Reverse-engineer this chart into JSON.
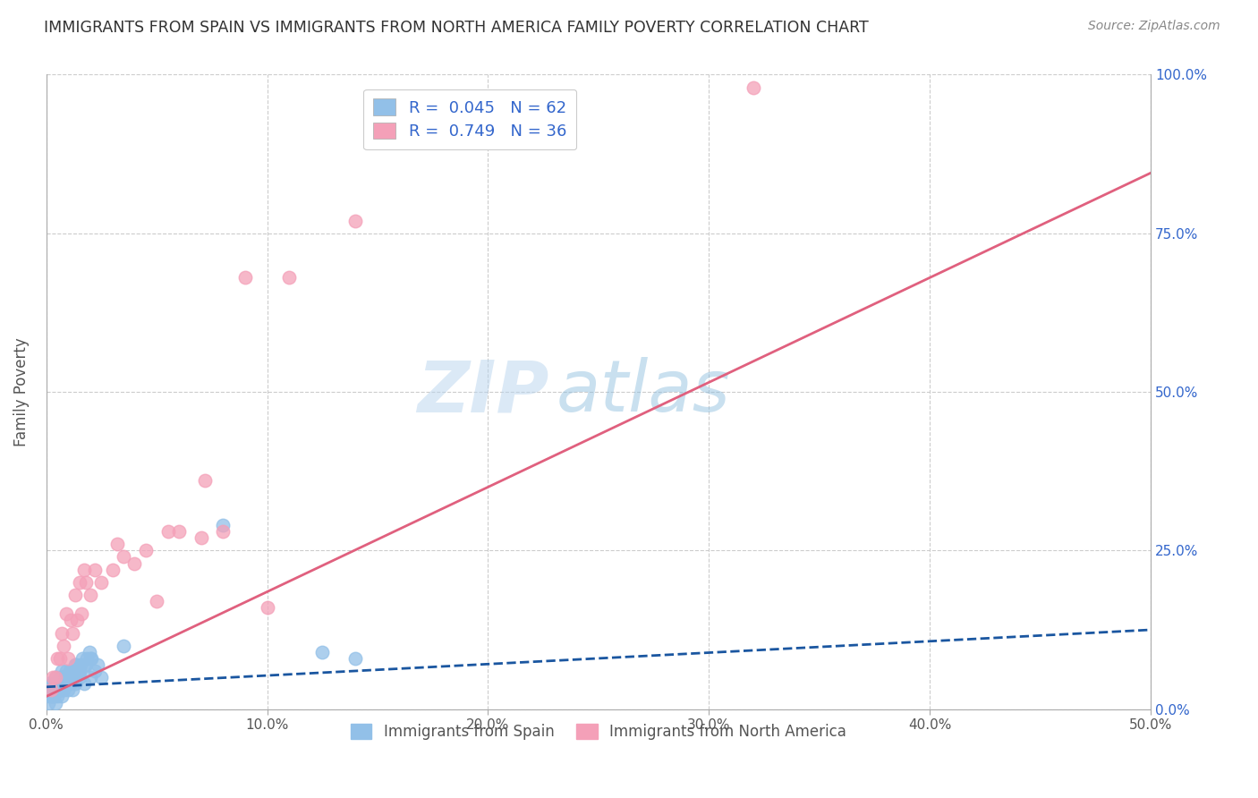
{
  "title": "IMMIGRANTS FROM SPAIN VS IMMIGRANTS FROM NORTH AMERICA FAMILY POVERTY CORRELATION CHART",
  "source": "Source: ZipAtlas.com",
  "ylabel": "Family Poverty",
  "x_tick_labels": [
    "0.0%",
    "10.0%",
    "20.0%",
    "30.0%",
    "40.0%",
    "50.0%"
  ],
  "x_tick_values": [
    0,
    10,
    20,
    30,
    40,
    50
  ],
  "y_tick_labels": [
    "0.0%",
    "25.0%",
    "50.0%",
    "75.0%",
    "100.0%"
  ],
  "y_tick_values": [
    0,
    25,
    50,
    75,
    100
  ],
  "xlim": [
    0,
    50
  ],
  "ylim": [
    0,
    100
  ],
  "legend_R_blue": "0.045",
  "legend_N_blue": "62",
  "legend_R_pink": "0.749",
  "legend_N_pink": "36",
  "blue_color": "#92C0E8",
  "pink_color": "#F4A0B8",
  "blue_line_color": "#1A56A0",
  "pink_line_color": "#E0607E",
  "legend_text_color": "#3366CC",
  "title_color": "#333333",
  "grid_color": "#CCCCCC",
  "background_color": "#FFFFFF",
  "blue_scatter_x": [
    0.1,
    0.2,
    0.3,
    0.1,
    0.4,
    0.2,
    0.5,
    0.3,
    0.6,
    0.4,
    0.7,
    0.5,
    0.8,
    0.6,
    0.9,
    0.7,
    1.0,
    0.8,
    1.1,
    0.9,
    1.2,
    1.0,
    1.3,
    1.1,
    1.5,
    1.3,
    1.7,
    1.5,
    2.0,
    1.8,
    2.2,
    2.0,
    2.5,
    2.3,
    0.15,
    0.25,
    0.35,
    0.45,
    0.55,
    0.65,
    0.75,
    0.85,
    0.95,
    1.05,
    1.15,
    1.25,
    1.35,
    1.45,
    1.55,
    1.65,
    1.75,
    1.85,
    1.95,
    2.05,
    0.3,
    0.4,
    0.6,
    0.8,
    3.5,
    8.0,
    12.5,
    14.0
  ],
  "blue_scatter_y": [
    1,
    2,
    3,
    4,
    1,
    3,
    2,
    4,
    3,
    5,
    2,
    4,
    3,
    5,
    4,
    6,
    3,
    5,
    4,
    6,
    3,
    5,
    4,
    6,
    5,
    7,
    4,
    6,
    5,
    7,
    6,
    8,
    5,
    7,
    2,
    3,
    2,
    3,
    4,
    3,
    5,
    4,
    5,
    6,
    5,
    6,
    7,
    6,
    7,
    8,
    7,
    8,
    9,
    8,
    2,
    3,
    4,
    5,
    10,
    29,
    9,
    8
  ],
  "pink_scatter_x": [
    0.2,
    0.4,
    0.6,
    0.8,
    1.0,
    1.2,
    1.4,
    1.6,
    1.8,
    2.0,
    2.5,
    3.0,
    3.5,
    4.0,
    5.0,
    6.0,
    7.0,
    8.0,
    10.0,
    0.3,
    0.5,
    0.7,
    0.9,
    1.1,
    1.3,
    1.5,
    1.7,
    2.2,
    3.2,
    4.5,
    5.5,
    7.2,
    9.0,
    32.0,
    14.0,
    11.0
  ],
  "pink_scatter_y": [
    3,
    5,
    8,
    10,
    8,
    12,
    14,
    15,
    20,
    18,
    20,
    22,
    24,
    23,
    17,
    28,
    27,
    28,
    16,
    5,
    8,
    12,
    15,
    14,
    18,
    20,
    22,
    22,
    26,
    25,
    28,
    36,
    68,
    98,
    77,
    68
  ],
  "blue_trend_slope": 0.18,
  "blue_trend_intercept": 3.5,
  "pink_trend_slope": 1.65,
  "pink_trend_intercept": 2.0,
  "watermark_zip": "ZIP",
  "watermark_atlas": "atlas"
}
